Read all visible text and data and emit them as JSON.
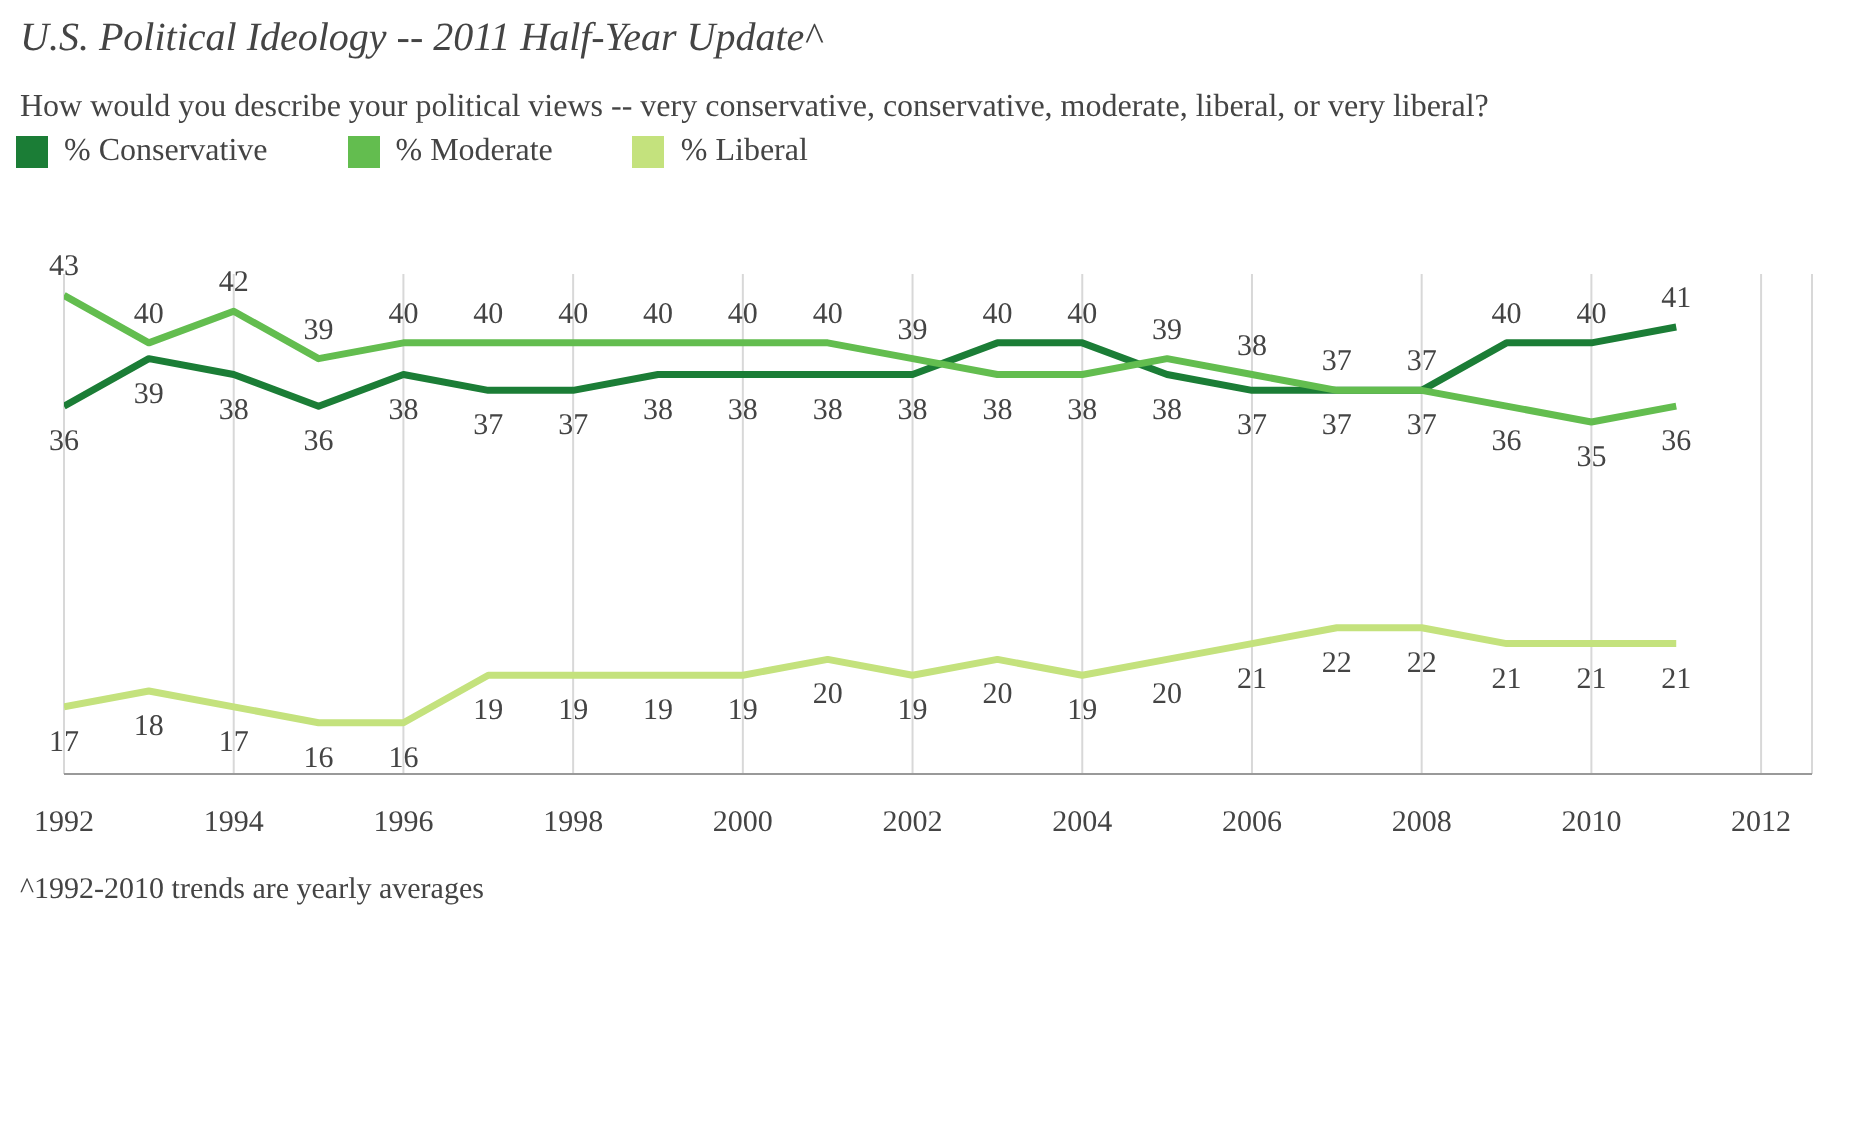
{
  "chart_data": {
    "type": "line",
    "title": "U.S. Political Ideology -- 2011 Half-Year Update^",
    "subtitle": "How would you describe your political views -- very conservative, conservative, moderate, liberal, or very liberal?",
    "x": [
      1992,
      1993,
      1994,
      1995,
      1996,
      1997,
      1998,
      1999,
      2000,
      2001,
      2002,
      2003,
      2004,
      2005,
      2006,
      2007,
      2008,
      2009,
      2010,
      2011
    ],
    "series": [
      {
        "name": "% Conservative",
        "color": "#1b7d36",
        "values": [
          36,
          39,
          38,
          36,
          38,
          37,
          37,
          38,
          38,
          38,
          38,
          40,
          40,
          38,
          37,
          37,
          37,
          40,
          40,
          41
        ]
      },
      {
        "name": "% Moderate",
        "color": "#63bd4f",
        "values": [
          43,
          40,
          42,
          39,
          40,
          40,
          40,
          40,
          40,
          40,
          39,
          38,
          38,
          39,
          38,
          37,
          37,
          36,
          35,
          36
        ]
      },
      {
        "name": "% Liberal",
        "color": "#c4e27d",
        "values": [
          17,
          18,
          17,
          16,
          16,
          19,
          19,
          19,
          19,
          20,
          19,
          20,
          19,
          20,
          21,
          22,
          22,
          21,
          21,
          21
        ]
      }
    ],
    "xlim": [
      1992,
      2012.6
    ],
    "xticks": [
      1992,
      1994,
      1996,
      1998,
      2000,
      2002,
      2004,
      2006,
      2008,
      2010,
      2012
    ],
    "grid": "x",
    "legend": "top left",
    "data_labels": true,
    "annotations": [
      "^1992-2010 trends are yearly averages"
    ]
  }
}
